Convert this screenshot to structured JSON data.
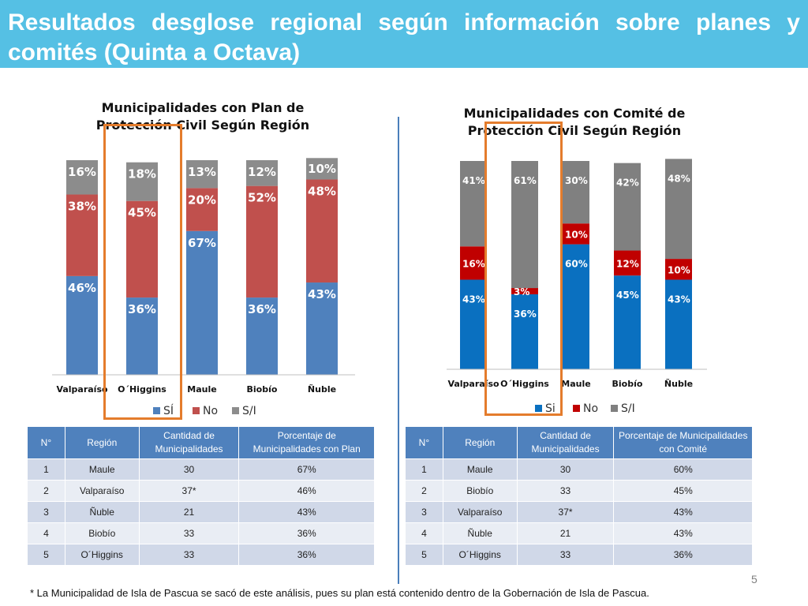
{
  "slide": {
    "title": "Resultados desglose regional según información sobre planes y comités (Quinta a Octava)",
    "footnote": "* La Municipalidad de Isla de Pascua se sacó de este análisis, pues su plan está contenido dentro de la Gobernación de Isla de Pascua.",
    "page_number": "5"
  },
  "chart_data": [
    {
      "type": "bar",
      "stacked": true,
      "title_lines": [
        "Municipalidades con Plan de",
        "Protección Civil Según Región"
      ],
      "categories": [
        "Valparaíso",
        "O´Higgins",
        "Maule",
        "Biobío",
        "Ñuble"
      ],
      "series": [
        {
          "name": "SÍ",
          "color": "#4f81bd",
          "values": [
            46,
            36,
            67,
            36,
            43
          ]
        },
        {
          "name": "No",
          "color": "#c0504d",
          "values": [
            38,
            45,
            20,
            52,
            48
          ]
        },
        {
          "name": "S/I",
          "color": "#8c8c8c",
          "values": [
            16,
            18,
            13,
            12,
            10
          ]
        }
      ],
      "ylim": [
        0,
        100
      ],
      "value_suffix": "%",
      "legend_position": "bottom"
    },
    {
      "type": "bar",
      "stacked": true,
      "title_lines": [
        "Municipalidades con Comité de",
        "Protección Civil Según Región"
      ],
      "categories": [
        "Valparaíso",
        "O´Higgins",
        "Maule",
        "Biobío",
        "Ñuble"
      ],
      "series": [
        {
          "name": "Si",
          "color": "#0a70c0",
          "values": [
            43,
            36,
            60,
            45,
            43
          ]
        },
        {
          "name": "No",
          "color": "#c00000",
          "values": [
            16,
            3,
            10,
            12,
            10
          ]
        },
        {
          "name": "S/I",
          "color": "#808080",
          "values": [
            41,
            61,
            30,
            42,
            48
          ]
        }
      ],
      "ylim": [
        0,
        100
      ],
      "value_suffix": "%",
      "legend_position": "bottom"
    }
  ],
  "tables": [
    {
      "headers": [
        "N°",
        "Región",
        "Cantidad de Municipalidades",
        "Porcentaje de Municipalidades con Plan"
      ],
      "rows": [
        [
          "1",
          "Maule",
          "30",
          "67%"
        ],
        [
          "2",
          "Valparaíso",
          "37*",
          "46%"
        ],
        [
          "3",
          "Ñuble",
          "21",
          "43%"
        ],
        [
          "4",
          "Biobío",
          "33",
          "36%"
        ],
        [
          "5",
          "O´Higgins",
          "33",
          "36%"
        ]
      ]
    },
    {
      "headers": [
        "N°",
        "Región",
        "Cantidad de Municipalidades",
        "Porcentaje de Municipalidades con Comité"
      ],
      "rows": [
        [
          "1",
          "Maule",
          "30",
          "60%"
        ],
        [
          "2",
          "Biobío",
          "33",
          "45%"
        ],
        [
          "3",
          "Valparaíso",
          "37*",
          "43%"
        ],
        [
          "4",
          "Ñuble",
          "21",
          "43%"
        ],
        [
          "5",
          "O´Higgins",
          "33",
          "36%"
        ]
      ]
    }
  ]
}
